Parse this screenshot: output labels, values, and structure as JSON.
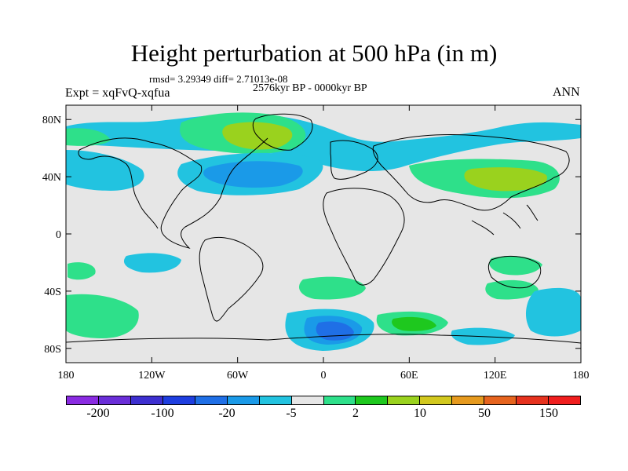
{
  "header": {
    "title": "Height perturbation at 500 hPa (in m)",
    "stats": "rmsd= 3.29349 diff= 2.71013e-08",
    "experiment": "Expt = xqFvQ-xqfua",
    "period": "2576kyr BP - 0000kyr BP",
    "season": "ANN"
  },
  "map": {
    "projection": "cylindrical-equidistant",
    "lon_range": [
      -180,
      180
    ],
    "lat_range": [
      -90,
      90
    ],
    "lat_ticks": [
      {
        "value": 80,
        "label": "80N"
      },
      {
        "value": 40,
        "label": "40N"
      },
      {
        "value": 0,
        "label": "0"
      },
      {
        "value": -40,
        "label": "40S"
      },
      {
        "value": -80,
        "label": "80S"
      }
    ],
    "lon_ticks": [
      {
        "value": -180,
        "label": "180"
      },
      {
        "value": -120,
        "label": "120W"
      },
      {
        "value": -60,
        "label": "60W"
      },
      {
        "value": 0,
        "label": "0"
      },
      {
        "value": 60,
        "label": "60E"
      },
      {
        "value": 120,
        "label": "120E"
      },
      {
        "value": 180,
        "label": "180"
      }
    ],
    "background_color": "#e6e6e6"
  },
  "colorbar": {
    "colors": [
      "#8a2be2",
      "#6a2ed8",
      "#3d2fd0",
      "#1e3ee0",
      "#1f6fe6",
      "#1a9ae8",
      "#22c3e0",
      "#e6e6e6",
      "#2ee08a",
      "#1ec81e",
      "#9ad21e",
      "#d2c81e",
      "#e69a1e",
      "#e6641e",
      "#e6321e",
      "#f01e1e"
    ],
    "labels": [
      "-200",
      "-100",
      "-20",
      "-5",
      "2",
      "10",
      "50",
      "150"
    ],
    "label_positions": [
      1,
      3,
      5,
      7,
      9,
      11,
      13,
      15
    ]
  }
}
